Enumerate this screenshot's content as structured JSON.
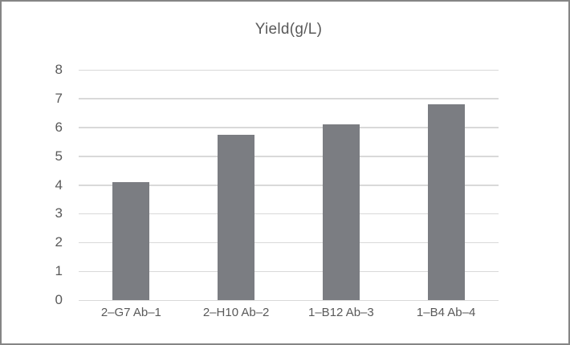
{
  "window": {
    "background_color": "#ffffff",
    "border_color": "#858585"
  },
  "colors": {
    "bar": "#7b7d82",
    "gridline": "#d9d9d9",
    "text": "#595959"
  },
  "chart_data": {
    "type": "bar",
    "title": "Yield(g/L)",
    "categories": [
      "2–G7 Ab–1",
      "2–H10 Ab–2",
      "1–B12 Ab–3",
      "1–B4 Ab–4"
    ],
    "values": [
      4.1,
      5.75,
      6.1,
      6.8
    ],
    "xlabel": "",
    "ylabel": "",
    "ylim": [
      0,
      8
    ],
    "yticks": [
      0,
      1,
      2,
      3,
      4,
      5,
      6,
      7,
      8
    ],
    "grid": true,
    "legend": false,
    "legend_position": "none"
  }
}
